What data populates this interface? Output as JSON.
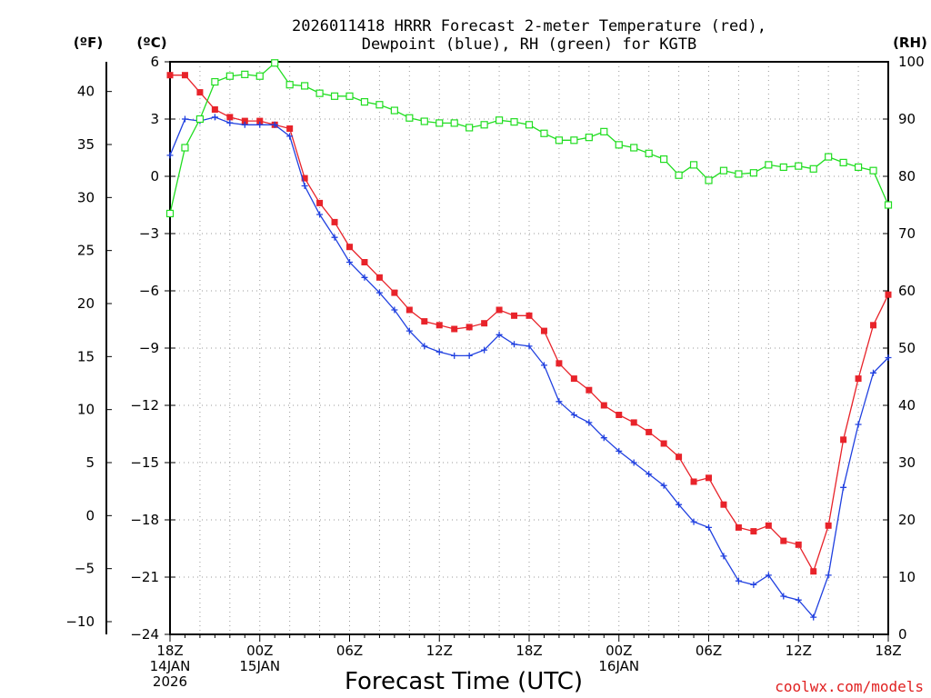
{
  "chart_data": {
    "type": "line",
    "title_line1": "2026011418 HRRR Forecast 2-meter Temperature (red),",
    "title_line2": "Dewpoint (blue), RH (green) for KGTB",
    "xlabel": "Forecast Time (UTC)",
    "credit": "coolwx.com/models",
    "units": {
      "fahrenheit": "(ºF)",
      "celsius": "(ºC)",
      "rh": "(RH)"
    },
    "x_range_hours": [
      0,
      48
    ],
    "celsius_range": [
      -24,
      6
    ],
    "fahrenheit_range": [
      -11.2,
      42.8
    ],
    "rh_range": [
      0,
      100
    ],
    "celsius_ticks": [
      "6",
      "3",
      "0",
      "−3",
      "−6",
      "−9",
      "−12",
      "−15",
      "−18",
      "−21",
      "−24"
    ],
    "fahrenheit_ticks": [
      "40",
      "35",
      "30",
      "25",
      "20",
      "15",
      "10",
      "5",
      "0",
      "−5",
      "−10"
    ],
    "rh_ticks": [
      "100",
      "90",
      "80",
      "70",
      "60",
      "50",
      "40",
      "30",
      "20",
      "10",
      "0"
    ],
    "x_ticks": [
      {
        "hour": 0,
        "lines": [
          "18Z",
          "14JAN",
          "2026"
        ]
      },
      {
        "hour": 6,
        "lines": [
          "00Z",
          "15JAN"
        ]
      },
      {
        "hour": 12,
        "lines": [
          "06Z"
        ]
      },
      {
        "hour": 18,
        "lines": [
          "12Z"
        ]
      },
      {
        "hour": 24,
        "lines": [
          "18Z"
        ]
      },
      {
        "hour": 30,
        "lines": [
          "00Z",
          "16JAN"
        ]
      },
      {
        "hour": 36,
        "lines": [
          "06Z"
        ]
      },
      {
        "hour": 42,
        "lines": [
          "12Z"
        ]
      },
      {
        "hour": 48,
        "lines": [
          "18Z"
        ]
      }
    ],
    "colors": {
      "temperature": "#e8232a",
      "dewpoint": "#2040e0",
      "rh": "#20dd20"
    },
    "series": [
      {
        "name": "Temperature",
        "unit": "C",
        "values": [
          5.3,
          5.3,
          4.4,
          3.5,
          3.1,
          2.9,
          2.9,
          2.7,
          2.5,
          -0.1,
          -1.4,
          -2.4,
          -3.7,
          -4.5,
          -5.3,
          -6.1,
          -7.0,
          -7.6,
          -7.8,
          -8.0,
          -7.9,
          -7.7,
          -7.0,
          -7.3,
          -7.3,
          -8.1,
          -9.8,
          -10.6,
          -11.2,
          -12.0,
          -12.5,
          -12.9,
          -13.4,
          -14.0,
          -14.7,
          -16.0,
          -15.8,
          -17.2,
          -18.4,
          -18.6,
          -18.3,
          -19.1,
          -19.3,
          -20.7,
          -18.3,
          -13.8,
          -10.6,
          -7.8,
          -6.2
        ]
      },
      {
        "name": "Dewpoint",
        "unit": "C",
        "values": [
          1.1,
          3.0,
          2.9,
          3.1,
          2.8,
          2.7,
          2.7,
          2.7,
          2.1,
          -0.5,
          -2.0,
          -3.2,
          -4.5,
          -5.3,
          -6.1,
          -7.0,
          -8.1,
          -8.9,
          -9.2,
          -9.4,
          -9.4,
          -9.1,
          -8.3,
          -8.8,
          -8.9,
          -9.9,
          -11.8,
          -12.5,
          -12.9,
          -13.7,
          -14.4,
          -15.0,
          -15.6,
          -16.2,
          -17.2,
          -18.1,
          -18.4,
          -19.9,
          -21.2,
          -21.4,
          -20.9,
          -22.0,
          -22.2,
          -23.1,
          -20.9,
          -16.3,
          -13.0,
          -10.3,
          -9.5
        ]
      },
      {
        "name": "RH",
        "unit": "%",
        "values": [
          73.5,
          85,
          90,
          96.5,
          97.5,
          97.8,
          97.5,
          99.8,
          96,
          95.8,
          94.5,
          94,
          94,
          93,
          92.5,
          91.5,
          90.2,
          89.6,
          89.3,
          89.3,
          88.5,
          89,
          89.8,
          89.5,
          89,
          87.5,
          86.3,
          86.3,
          86.8,
          87.8,
          85.5,
          85,
          84,
          83,
          80.2,
          82,
          79.3,
          81,
          80.4,
          80.6,
          82,
          81.6,
          81.8,
          81.3,
          83.4,
          82.4,
          81.6,
          81,
          75
        ]
      }
    ]
  }
}
